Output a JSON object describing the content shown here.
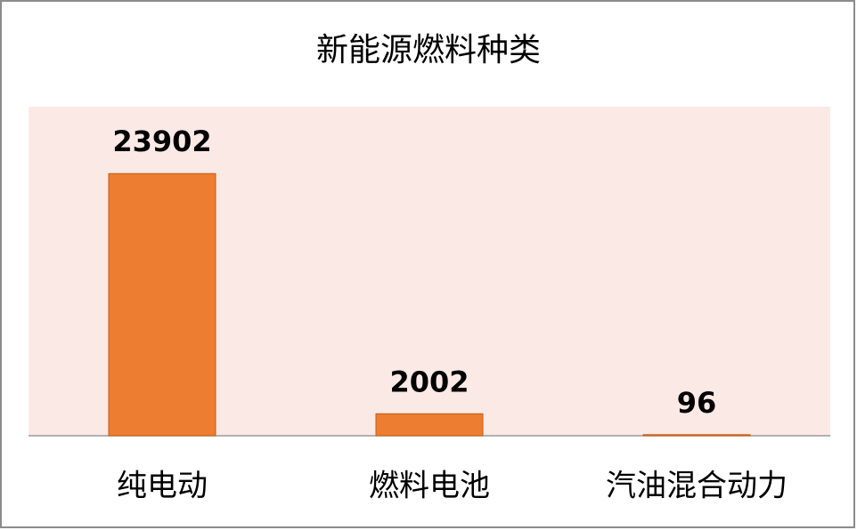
{
  "chart_data": {
    "type": "bar",
    "title": "新能源燃料种类",
    "categories": [
      "纯电动",
      "燃料电池",
      "汽油混合动力"
    ],
    "values": [
      23902,
      2002,
      96
    ],
    "color": "#ed7d31",
    "ylim": [
      0,
      30000
    ]
  }
}
